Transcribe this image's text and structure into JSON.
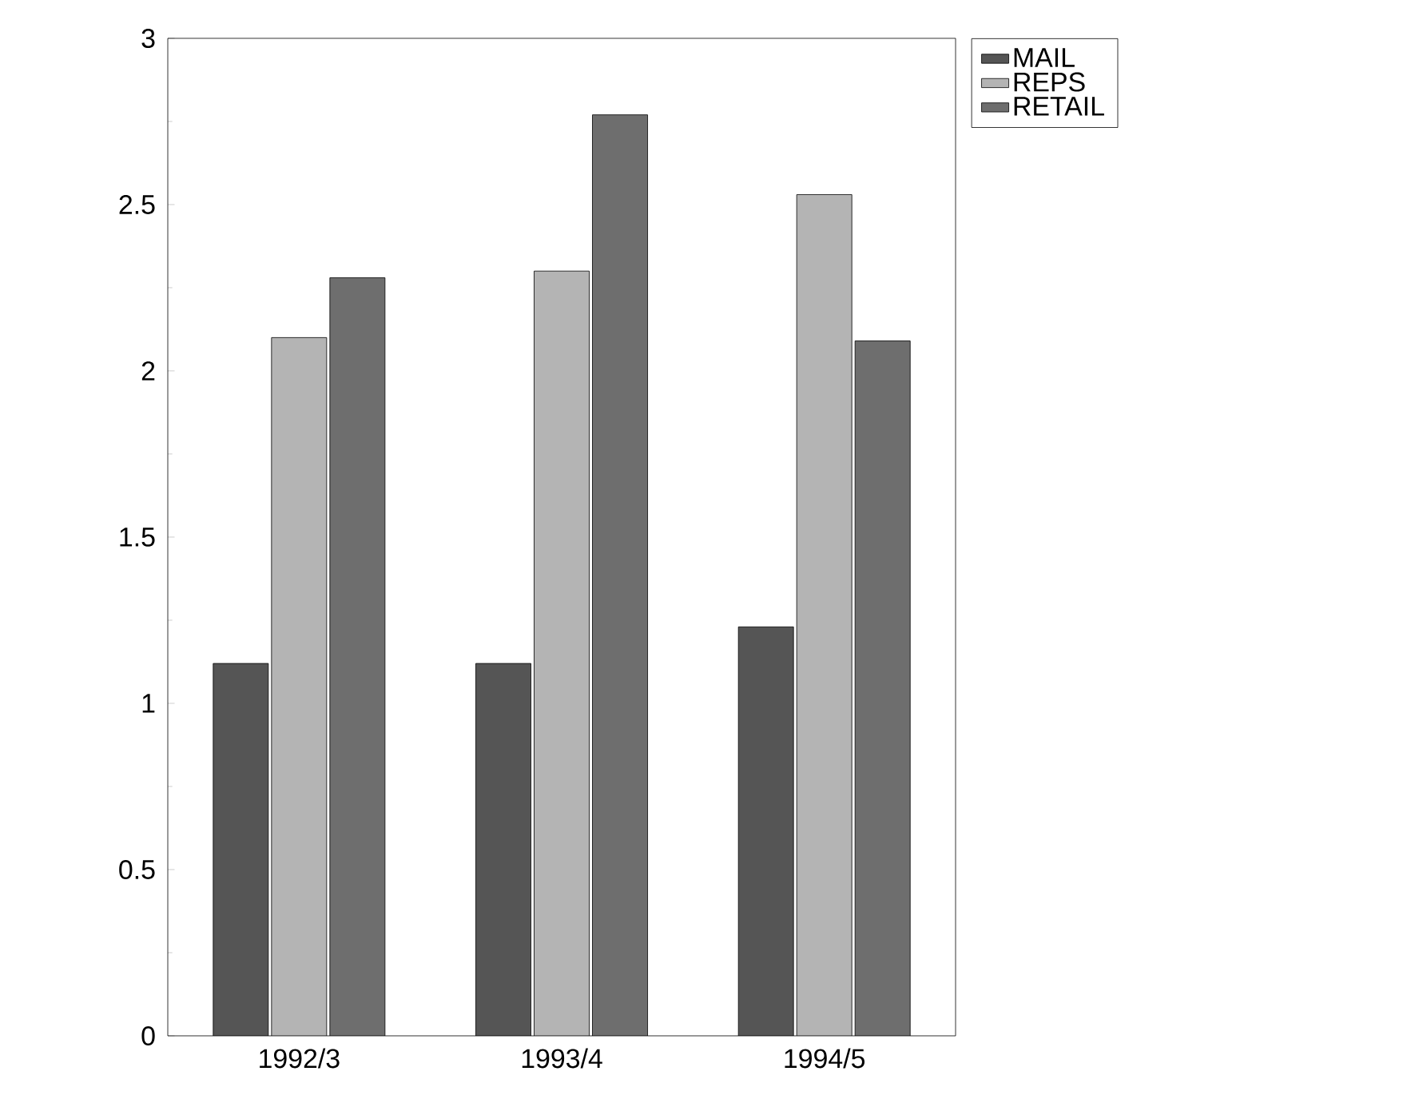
{
  "chart_data": {
    "type": "bar",
    "categories": [
      "1992/3",
      "1993/4",
      "1994/5"
    ],
    "series": [
      {
        "name": "MAIL",
        "color": "#555555",
        "values": [
          1.12,
          1.12,
          1.23
        ]
      },
      {
        "name": "REPS",
        "color": "#b4b4b4",
        "values": [
          2.1,
          2.3,
          2.53
        ]
      },
      {
        "name": "RETAIL",
        "color": "#6e6e6e",
        "values": [
          2.28,
          2.77,
          2.09
        ]
      }
    ],
    "ylim": [
      0,
      3
    ],
    "yticks": [
      0,
      0.5,
      1,
      1.5,
      2,
      2.5,
      3
    ],
    "grid": false,
    "legend": "top right"
  }
}
